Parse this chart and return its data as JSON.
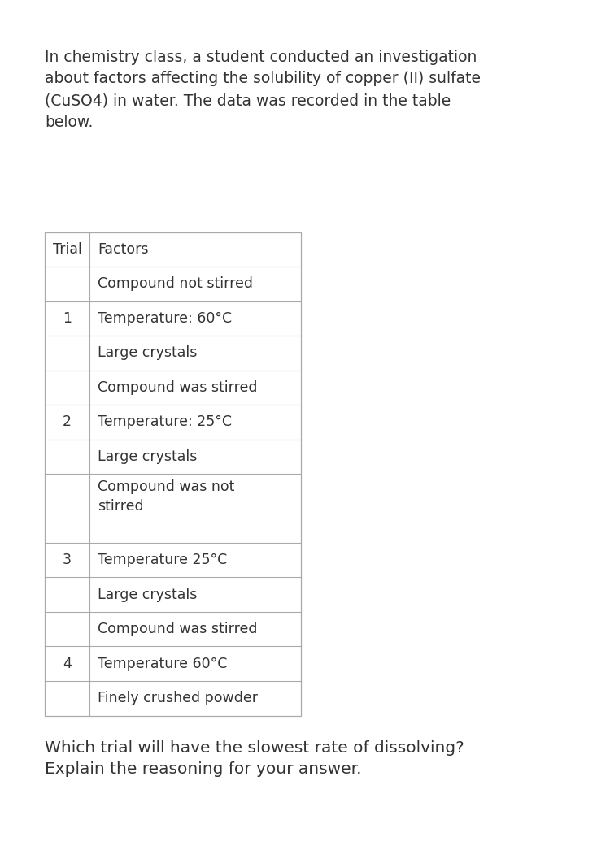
{
  "background_color": "#ffffff",
  "intro_text": "In chemistry class, a student conducted an investigation\nabout factors affecting the solubility of copper (II) sulfate\n(CuSO4) in water. The data was recorded in the table\nbelow.",
  "question_text": "Which trial will have the slowest rate of dissolving?\nExplain the reasoning for your answer.",
  "header": [
    "Trial",
    "Factors"
  ],
  "rows": [
    {
      "trial": "",
      "factors": "Compound not stirred",
      "multiline": false
    },
    {
      "trial": "1",
      "factors": "Temperature: 60°C",
      "multiline": false
    },
    {
      "trial": "",
      "factors": "Large crystals",
      "multiline": false
    },
    {
      "trial": "",
      "factors": "Compound was stirred",
      "multiline": false
    },
    {
      "trial": "2",
      "factors": "Temperature: 25°C",
      "multiline": false
    },
    {
      "trial": "",
      "factors": "Large crystals",
      "multiline": false
    },
    {
      "trial": "",
      "factors": "Compound was not\nstirred",
      "multiline": true
    },
    {
      "trial": "3",
      "factors": "Temperature 25°C",
      "multiline": false
    },
    {
      "trial": "",
      "factors": "Large crystals",
      "multiline": false
    },
    {
      "trial": "",
      "factors": "Compound was stirred",
      "multiline": false
    },
    {
      "trial": "4",
      "factors": "Temperature 60°C",
      "multiline": false
    },
    {
      "trial": "",
      "factors": "Finely crushed powder",
      "multiline": false
    }
  ],
  "intro_fontsize": 13.5,
  "table_fontsize": 12.5,
  "question_fontsize": 14.5,
  "line_color": "#aaaaaa",
  "text_color": "#333333"
}
